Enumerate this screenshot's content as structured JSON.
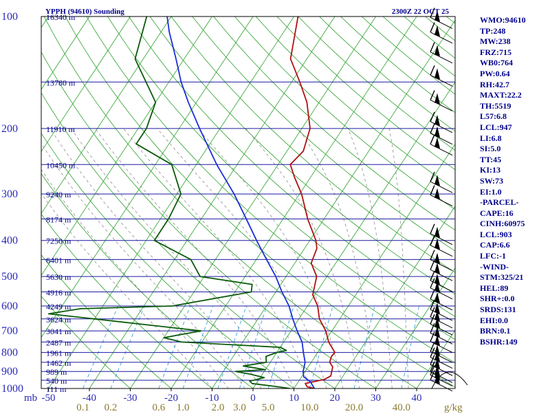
{
  "header": {
    "title": "YPPH (94610) Sounding",
    "timestamp": "2300Z 22 OCT 25"
  },
  "chart_data": {
    "type": "line",
    "pressure_labels": [
      "100",
      "200",
      "300",
      "400",
      "500",
      "600",
      "700",
      "800",
      "900",
      "1000"
    ],
    "height_labels": [
      {
        "p": 100,
        "label": "16340 m"
      },
      {
        "p": 150,
        "label": "13780 m"
      },
      {
        "p": 200,
        "label": "11910 m"
      },
      {
        "p": 250,
        "label": "10450 m"
      },
      {
        "p": 300,
        "label": "9240 m"
      },
      {
        "p": 350,
        "label": "8174 m"
      },
      {
        "p": 400,
        "label": "7250 m"
      },
      {
        "p": 450,
        "label": "6401 m"
      },
      {
        "p": 500,
        "label": "5630 m"
      },
      {
        "p": 550,
        "label": "4916 m"
      },
      {
        "p": 600,
        "label": "4249 m"
      },
      {
        "p": 650,
        "label": "3624 m"
      },
      {
        "p": 700,
        "label": "3041 m"
      },
      {
        "p": 750,
        "label": "2487 m"
      },
      {
        "p": 800,
        "label": "1961 m"
      },
      {
        "p": 850,
        "label": "1462 m"
      },
      {
        "p": 900,
        "label": "989 m"
      },
      {
        "p": 950,
        "label": "540 m"
      },
      {
        "p": 1000,
        "label": "111 m"
      }
    ],
    "temp_axis_label": "mb",
    "temp_ticks": [
      "-50",
      "-40",
      "-30",
      "-20",
      "-10",
      "0",
      "10",
      "20",
      "30",
      "40"
    ],
    "mixing_ratio_ticks": [
      {
        "w": 0.1,
        "label": "0.1"
      },
      {
        "w": 0.2,
        "label": "0.2"
      },
      {
        "w": 0.6,
        "label": "0.6"
      },
      {
        "w": 1.0,
        "label": "1.0"
      },
      {
        "w": 2.0,
        "label": "2.0"
      },
      {
        "w": 3.0,
        "label": "3.0"
      },
      {
        "w": 5.0,
        "label": "5.0"
      },
      {
        "w": 10.0,
        "label": "10.0"
      },
      {
        "w": 20.0,
        "label": "20.0"
      },
      {
        "w": 40.0,
        "label": "40.0"
      }
    ],
    "mixing_ratio_unit": "g/kg",
    "series": [
      {
        "key": "temperature",
        "color": "#b01010",
        "points": [
          [
            1000,
            15
          ],
          [
            990,
            13
          ],
          [
            970,
            12
          ],
          [
            945,
            16
          ],
          [
            925,
            17
          ],
          [
            900,
            16.5
          ],
          [
            875,
            16
          ],
          [
            850,
            14.5
          ],
          [
            820,
            14
          ],
          [
            800,
            14.2
          ],
          [
            750,
            11
          ],
          [
            700,
            8.5
          ],
          [
            650,
            5
          ],
          [
            600,
            2.5
          ],
          [
            560,
            -0.5
          ],
          [
            500,
            -2.5
          ],
          [
            460,
            -6
          ],
          [
            420,
            -7
          ],
          [
            400,
            -8.5
          ],
          [
            350,
            -14
          ],
          [
            300,
            -19.5
          ],
          [
            270,
            -24
          ],
          [
            250,
            -27
          ],
          [
            230,
            -26
          ],
          [
            200,
            -28
          ],
          [
            170,
            -33
          ],
          [
            150,
            -38
          ],
          [
            130,
            -44
          ],
          [
            100,
            -49
          ]
        ]
      },
      {
        "key": "dewpoint",
        "color": "#0a5a0a",
        "points": [
          [
            1000,
            9
          ],
          [
            990,
            6
          ],
          [
            970,
            -1
          ],
          [
            955,
            -2
          ],
          [
            935,
            1
          ],
          [
            915,
            -3
          ],
          [
            900,
            -7
          ],
          [
            890,
            0
          ],
          [
            870,
            -6
          ],
          [
            850,
            -1
          ],
          [
            820,
            -2
          ],
          [
            800,
            0
          ],
          [
            790,
            2
          ],
          [
            775,
            0
          ],
          [
            750,
            -25
          ],
          [
            730,
            -30
          ],
          [
            700,
            -22
          ],
          [
            650,
            -50
          ],
          [
            630,
            -62
          ],
          [
            610,
            -55
          ],
          [
            600,
            -33
          ],
          [
            550,
            -16
          ],
          [
            525,
            -17
          ],
          [
            500,
            -31
          ],
          [
            450,
            -36
          ],
          [
            400,
            -48
          ],
          [
            350,
            -48
          ],
          [
            300,
            -49
          ],
          [
            250,
            -56
          ],
          [
            220,
            -68
          ],
          [
            200,
            -68
          ],
          [
            170,
            -70
          ],
          [
            130,
            -82
          ],
          [
            100,
            -86
          ]
        ]
      },
      {
        "key": "parcel",
        "color": "#1a2ed8",
        "points": [
          [
            1000,
            15
          ],
          [
            960,
            13
          ],
          [
            930,
            10.5
          ],
          [
            900,
            9.5
          ],
          [
            850,
            8.5
          ],
          [
            800,
            6.5
          ],
          [
            750,
            4.5
          ],
          [
            700,
            1.5
          ],
          [
            650,
            -1.5
          ],
          [
            600,
            -4.5
          ],
          [
            550,
            -8.5
          ],
          [
            500,
            -12.5
          ],
          [
            450,
            -17.5
          ],
          [
            400,
            -23
          ],
          [
            350,
            -29
          ],
          [
            300,
            -36
          ],
          [
            250,
            -45
          ],
          [
            200,
            -55
          ],
          [
            170,
            -62
          ],
          [
            150,
            -67
          ],
          [
            130,
            -72
          ],
          [
            110,
            -78
          ],
          [
            100,
            -81
          ]
        ]
      }
    ],
    "wind_barbs_pressures": [
      105,
      115,
      130,
      150,
      175,
      200,
      215,
      230,
      290,
      315,
      400,
      430,
      470,
      500,
      535,
      560,
      600,
      640,
      670,
      700,
      740,
      780,
      830,
      860,
      900,
      940,
      960,
      990
    ]
  },
  "indices": [
    "WMO:94610",
    "TP:248",
    "MW:238",
    "FRZ:715",
    "WB0:764",
    "PW:0.64",
    "RH:42.7",
    "MAXT:22.2",
    "TH:5519",
    "L57:6.8",
    "LCL:947",
    "LI:6.8",
    "SI:5.0",
    "TT:45",
    "KI:13",
    "SW:73",
    "EI:1.0",
    "-PARCEL-",
    "CAPE:16",
    "CINH:60975",
    "LCL:903",
    "CAP:6.6",
    "LFC:-1",
    "-WIND-",
    "STM:325/21",
    "HEL:89",
    "SHR+:0.0",
    "SRDS:131",
    "EHI:0.0",
    "BRN:0.1",
    "BSHR:149"
  ],
  "colors": {
    "isobar": "#1a1aa0",
    "isotherm": "#2ba02b",
    "dry_adiabat": "#2ba02b",
    "moist_adiabat": "#8c8c8c",
    "mixing_ratio": "#3aa0e0",
    "label_text": "#00008b",
    "tick_text": "#2a2ab8",
    "mixing_text": "#8a7a30"
  }
}
